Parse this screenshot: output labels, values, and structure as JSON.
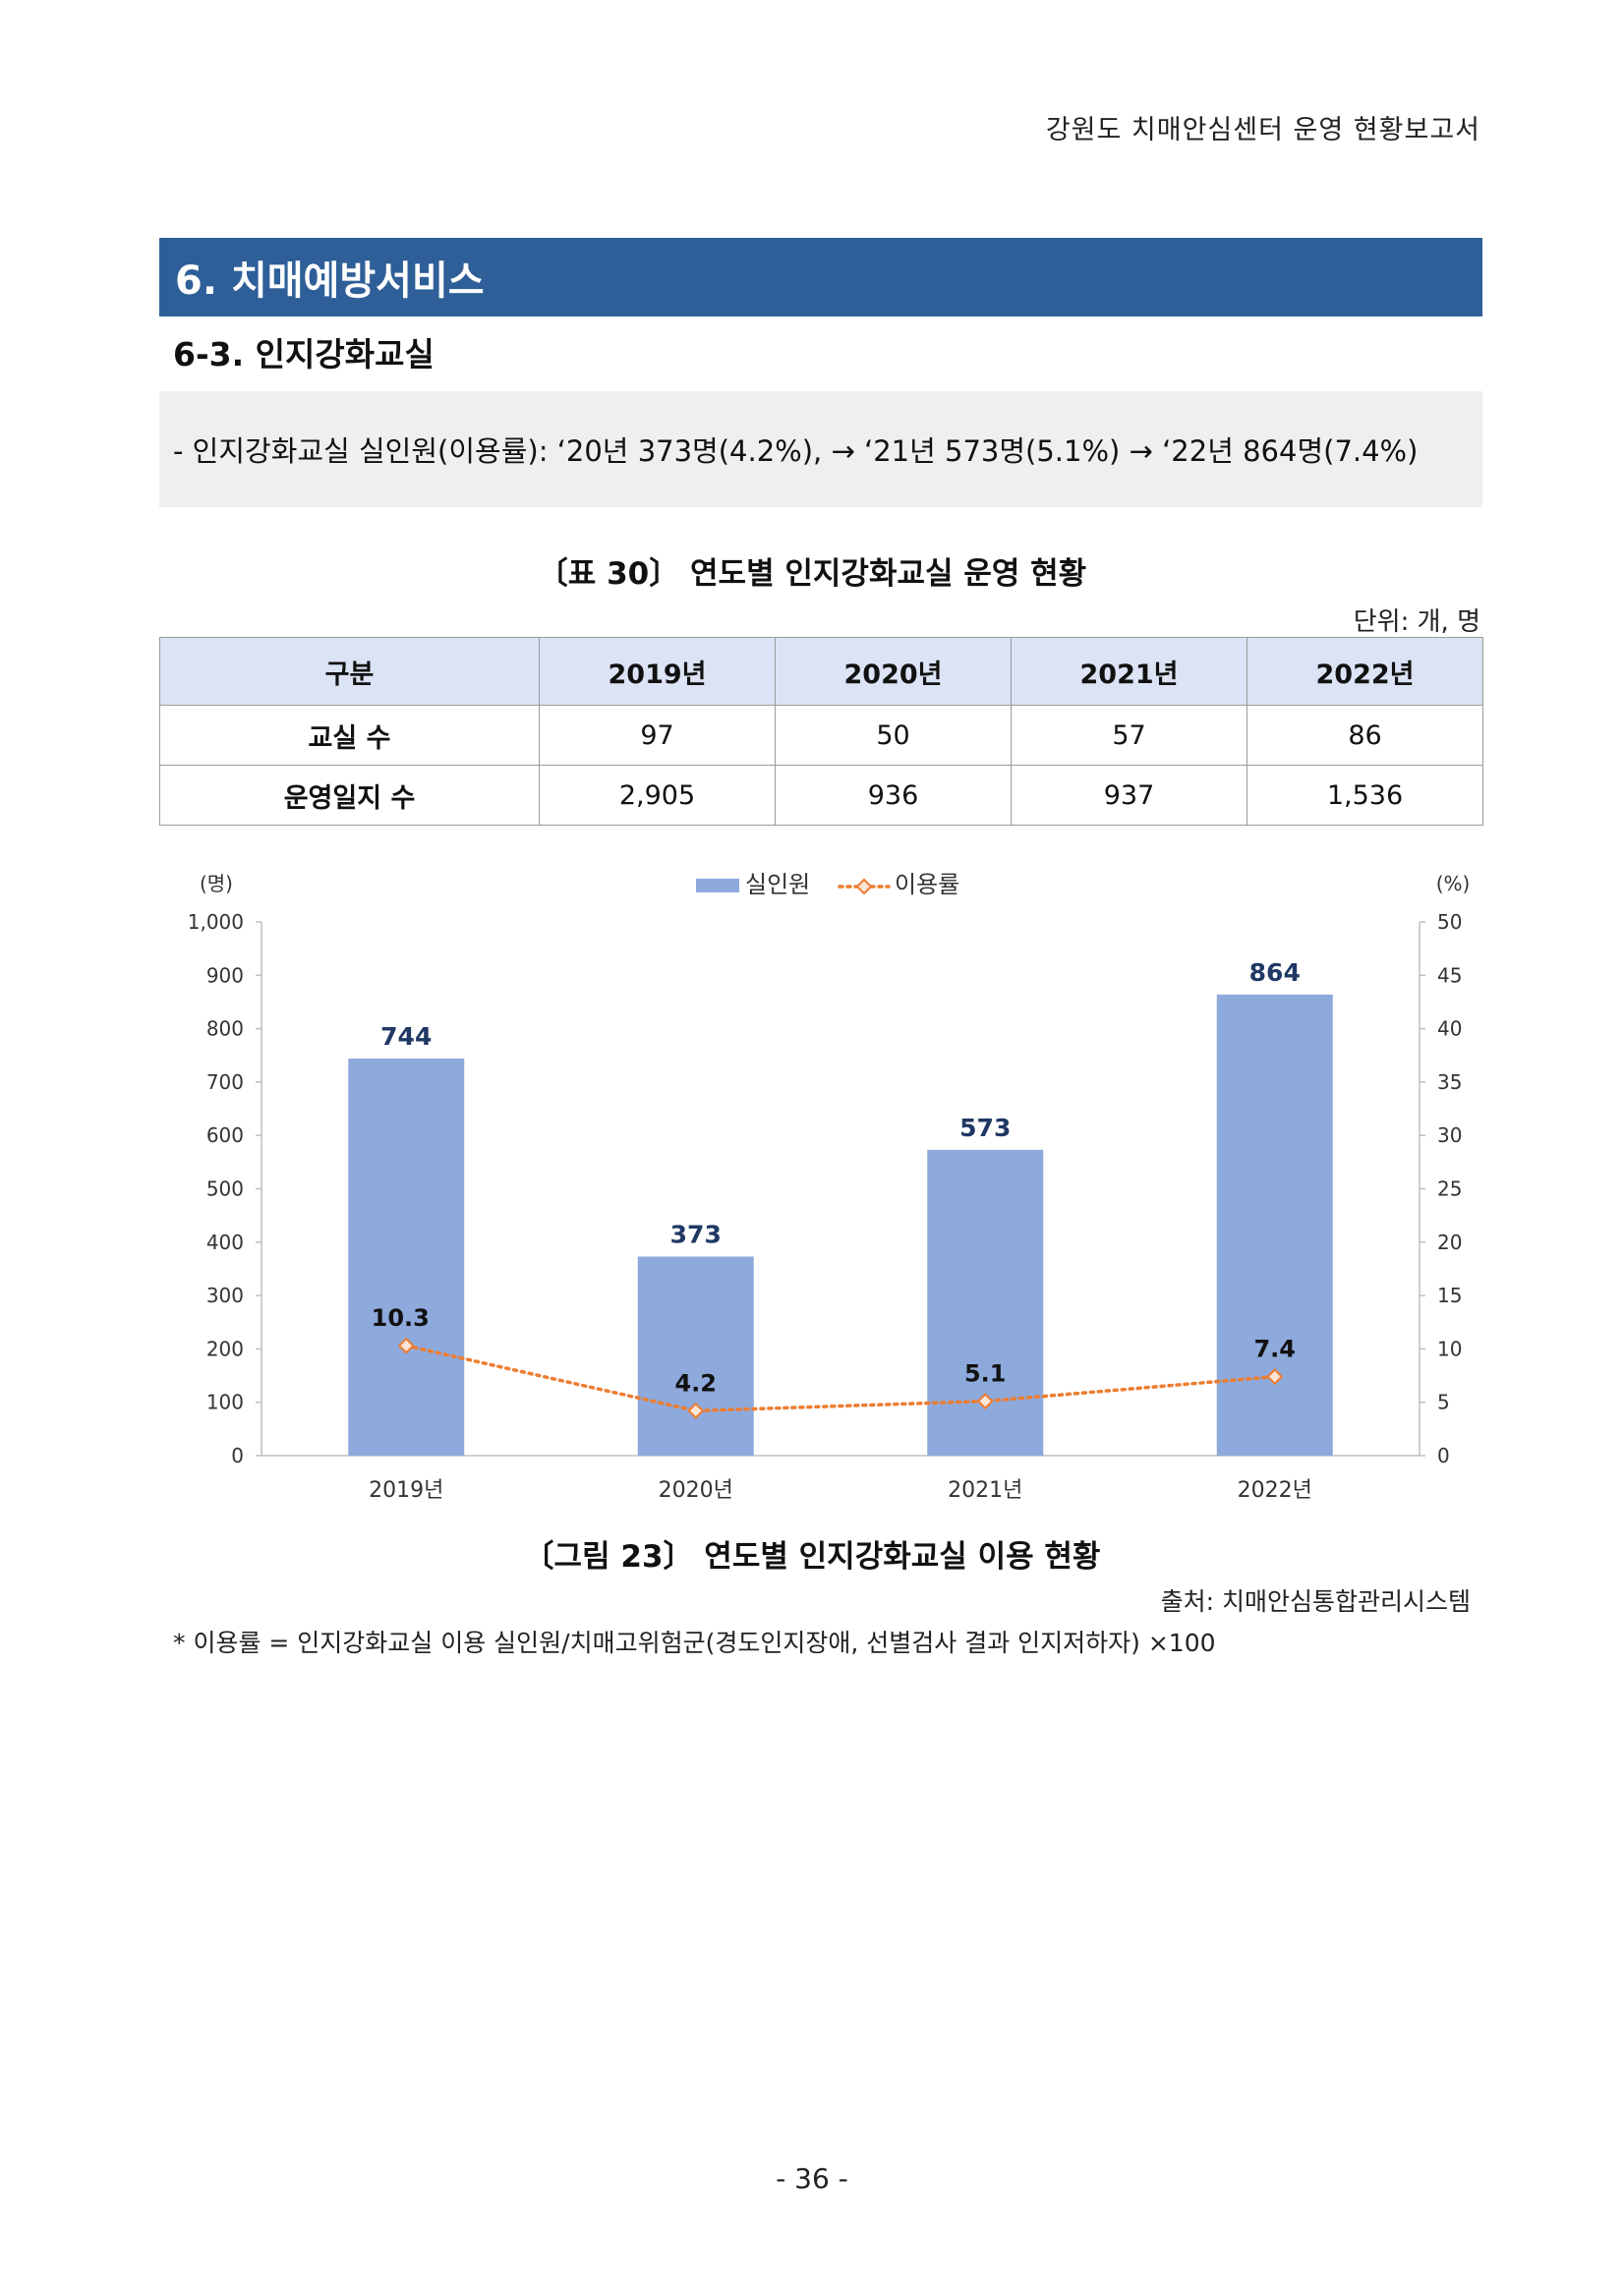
{
  "header": {
    "title": "강원도 치매안심센터 운영 현황보고서"
  },
  "section": {
    "title": "6. 치매예방서비스"
  },
  "subsection": {
    "title": "6-3. 인지강화교실"
  },
  "summary": {
    "text": "- 인지강화교실 실인원(이용률): ‘20년 373명(4.2%), → ‘21년 573명(5.1%) → ‘22년 864명(7.4%)"
  },
  "table": {
    "caption": "〔표 30〕 연도별 인지강화교실 운영 현황",
    "unit": "단위: 개, 명",
    "headers": [
      "구분",
      "2019년",
      "2020년",
      "2021년",
      "2022년"
    ],
    "rows": [
      {
        "label": "교실 수",
        "values": [
          "97",
          "50",
          "57",
          "86"
        ]
      },
      {
        "label": "운영일지 수",
        "values": [
          "2,905",
          "936",
          "937",
          "1,536"
        ]
      }
    ]
  },
  "chart_data": {
    "type": "bar",
    "categories": [
      "2019년",
      "2020년",
      "2021년",
      "2022년"
    ],
    "series": [
      {
        "name": "실인원",
        "type": "bar",
        "axis": "left",
        "values": [
          744,
          373,
          573,
          864
        ],
        "labels": [
          "744",
          "373",
          "573",
          "864"
        ],
        "color": "#8eaadc"
      },
      {
        "name": "이용률",
        "type": "line",
        "axis": "right",
        "values": [
          10.3,
          4.2,
          5.1,
          7.4
        ],
        "labels": [
          "10.3",
          "4.2",
          "5.1",
          "7.4"
        ],
        "color": "#ed7d31"
      }
    ],
    "y_left": {
      "label": "(명)",
      "range": [
        0,
        1000
      ],
      "ticks": [
        "0",
        "100",
        "200",
        "300",
        "400",
        "500",
        "600",
        "700",
        "800",
        "900",
        "1,000"
      ]
    },
    "y_right": {
      "label": "(%)",
      "range": [
        0,
        50
      ],
      "ticks": [
        "0",
        "5",
        "10",
        "15",
        "20",
        "25",
        "30",
        "35",
        "40",
        "45",
        "50"
      ]
    },
    "legend": "top-center",
    "grid": false,
    "caption": "〔그림 23〕 연도별 인지강화교실 이용 현황",
    "source": "출처: 치매안심통합관리시스템"
  },
  "footnote": {
    "text": "* 이용률 = 인지강화교실 이용 실인원/치매고위험군(경도인지장애, 선별검사 결과 인지저하자) ×100"
  },
  "page": {
    "number": "- 36 -"
  }
}
